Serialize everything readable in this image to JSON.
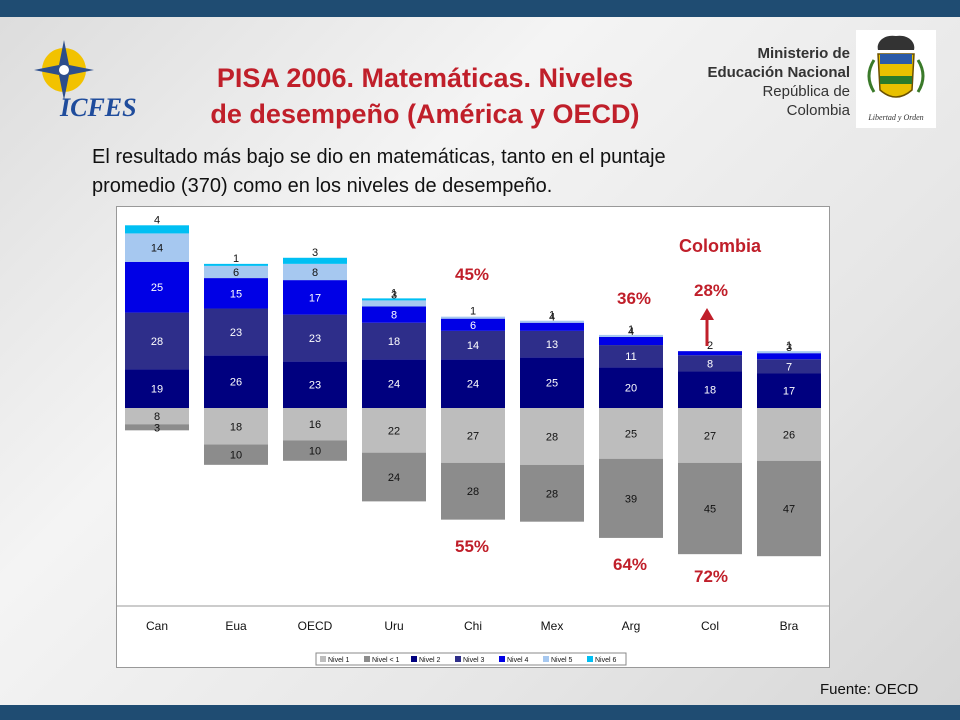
{
  "header": {
    "title_line1": "PISA 2006. Matemáticas. Niveles",
    "title_line2": "de desempeño (América y OECD)",
    "subtitle_line1": "El resultado más bajo se dio en matemáticas, tanto en el puntaje",
    "subtitle_line2": "promedio (370) como en los niveles de desempeño."
  },
  "logos": {
    "icfes_text": "ICFES",
    "ministerio_line1": "Ministerio de",
    "ministerio_line2": "Educación Nacional",
    "ministerio_line3": "República de Colombia",
    "shield_motto": "Libertad y Orden"
  },
  "footer": {
    "source": "Fuente: OECD"
  },
  "colors": {
    "nivel1": "#bdbdbd",
    "nivel_menos1": "#8c8c8c",
    "nivel2": "#00007f",
    "nivel3": "#2e2e8a",
    "nivel4": "#0000e6",
    "nivel5": "#a6c8f0",
    "nivel6": "#00bff3",
    "accent_red": "#c01f2a"
  },
  "chart_data": {
    "type": "bar",
    "subtype": "diverging-stacked",
    "categories": [
      "Can",
      "Eua",
      "OECD",
      "Uru",
      "Chi",
      "Mex",
      "Arg",
      "Col",
      "Bra"
    ],
    "below_baseline": [
      {
        "name": "Nivel < 1",
        "values": [
          3,
          10,
          10,
          24,
          28,
          28,
          39,
          45,
          47
        ]
      },
      {
        "name": "Nivel 1",
        "values": [
          8,
          18,
          16,
          22,
          27,
          28,
          25,
          27,
          26
        ]
      }
    ],
    "above_baseline": [
      {
        "name": "Nivel 2",
        "values": [
          19,
          26,
          23,
          24,
          24,
          25,
          20,
          18,
          17
        ]
      },
      {
        "name": "Nivel 3",
        "values": [
          28,
          23,
          23,
          18,
          14,
          13,
          11,
          8,
          7
        ]
      },
      {
        "name": "Nivel 4",
        "values": [
          25,
          15,
          17,
          8,
          6,
          4,
          4,
          2,
          3
        ]
      },
      {
        "name": "Nivel 5",
        "values": [
          14,
          6,
          8,
          3,
          1,
          1,
          1,
          0,
          1
        ]
      },
      {
        "name": "Nivel 6",
        "values": [
          4,
          1,
          3,
          1,
          0,
          0,
          0,
          0,
          0
        ]
      }
    ],
    "legend": [
      "Nivel 1",
      "Nivel < 1",
      "Nivel 2",
      "Nivel 3",
      "Nivel 4",
      "Nivel 5",
      "Nivel 6"
    ],
    "legend_placement": "bottom",
    "annotations": {
      "colombia_label": "Colombia",
      "chi_above": "45%",
      "chi_below": "55%",
      "arg_above": "36%",
      "arg_below": "64%",
      "col_above": "28%",
      "col_below": "72%"
    },
    "grid": false
  }
}
